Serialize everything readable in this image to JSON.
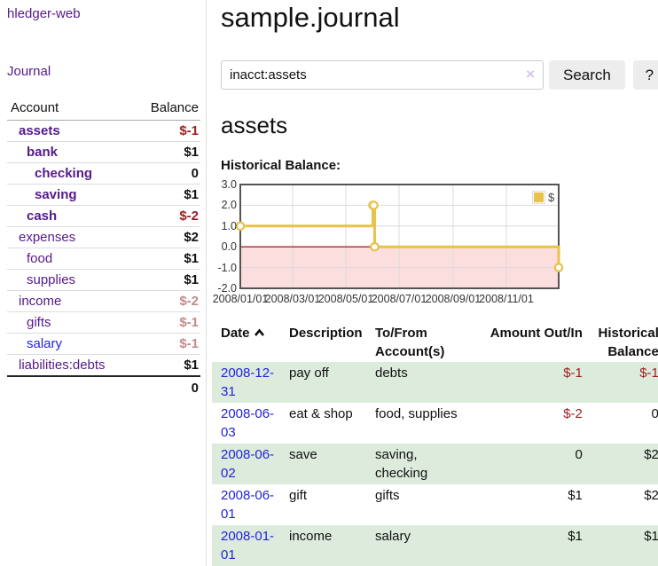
{
  "app": {
    "brand": "hledger-web"
  },
  "sidebar": {
    "journal_link": "Journal",
    "accounts": {
      "col_account": "Account",
      "col_balance": "Balance",
      "rows": [
        {
          "name": "assets",
          "balance": "$-1",
          "indent": 0,
          "bold": true,
          "balance_tone": "negative"
        },
        {
          "name": "bank",
          "balance": "$1",
          "indent": 1,
          "bold": true,
          "balance_tone": "normal"
        },
        {
          "name": "checking",
          "balance": "0",
          "indent": 2,
          "bold": true,
          "balance_tone": "normal"
        },
        {
          "name": "saving",
          "balance": "$1",
          "indent": 2,
          "bold": true,
          "balance_tone": "normal"
        },
        {
          "name": "cash",
          "balance": "$-2",
          "indent": 1,
          "bold": true,
          "balance_tone": "negative"
        },
        {
          "name": "expenses",
          "balance": "$2",
          "indent": 0,
          "bold": false,
          "balance_tone": "normal"
        },
        {
          "name": "food",
          "balance": "$1",
          "indent": 1,
          "bold": false,
          "balance_tone": "normal"
        },
        {
          "name": "supplies",
          "balance": "$1",
          "indent": 1,
          "bold": false,
          "balance_tone": "normal"
        },
        {
          "name": "income",
          "balance": "$-2",
          "indent": 0,
          "bold": false,
          "balance_tone": "negative-dim"
        },
        {
          "name": "gifts",
          "balance": "$-1",
          "indent": 1,
          "bold": false,
          "balance_tone": "negative-dim"
        },
        {
          "name": "salary",
          "balance": "$-1",
          "indent": 1,
          "bold": false,
          "balance_tone": "negative-dim",
          "link_state": "unvisited"
        },
        {
          "name": "liabilities:debts",
          "balance": "$1",
          "indent": 0,
          "bold": false,
          "balance_tone": "normal"
        }
      ],
      "total": "0"
    }
  },
  "main": {
    "title": "sample.journal",
    "search": {
      "value": "inacct:assets",
      "clear_icon": "×",
      "search_button": "Search",
      "help_button": "?"
    },
    "account_heading": "assets",
    "chart_heading": "Historical Balance:"
  },
  "chart_data": {
    "type": "line",
    "title": "Historical Balance of assets",
    "legend": [
      {
        "label": "$",
        "color": "#e8c24a"
      }
    ],
    "legend_position": "top-right",
    "x_range": [
      "2008-01-01",
      "2008-12-31"
    ],
    "ylim": [
      -2,
      3
    ],
    "yticks": [
      "3.0",
      "2.0",
      "1.0",
      "0.0",
      "-1.0",
      "-2.0"
    ],
    "xticks": [
      "2008/01/01",
      "2008/03/01",
      "2008/05/01",
      "2008/07/01",
      "2008/09/01",
      "2008/11/01"
    ],
    "grid": true,
    "series": [
      {
        "name": "$",
        "color": "#e8c24a",
        "step": true,
        "points": [
          [
            "2008-01-01",
            1
          ],
          [
            "2008-06-01",
            2
          ],
          [
            "2008-06-02",
            2
          ],
          [
            "2008-06-03",
            0
          ],
          [
            "2008-12-31",
            -1
          ]
        ]
      }
    ],
    "negative_fill": "#fcdede",
    "zero_line_color": "#8b0000"
  },
  "register": {
    "headers": {
      "date": "Date",
      "description": "Description",
      "accounts": "To/From Account(s)",
      "amount": "Amount Out/In",
      "balance": "Historical Balance"
    },
    "sort_icon": "chevron-up",
    "rows": [
      {
        "date": "2008-12-31",
        "description": "pay off",
        "accounts": "debts",
        "amount": "$-1",
        "balance": "$-1",
        "amount_tone": "negative",
        "balance_tone": "negative"
      },
      {
        "date": "2008-06-03",
        "description": "eat & shop",
        "accounts": "food, supplies",
        "amount": "$-2",
        "balance": "0",
        "amount_tone": "negative",
        "balance_tone": "normal"
      },
      {
        "date": "2008-06-02",
        "description": "save",
        "accounts": "saving, checking",
        "amount": "0",
        "balance": "$2",
        "amount_tone": "normal",
        "balance_tone": "normal"
      },
      {
        "date": "2008-06-01",
        "description": "gift",
        "accounts": "gifts",
        "amount": "$1",
        "balance": "$2",
        "amount_tone": "normal",
        "balance_tone": "normal"
      },
      {
        "date": "2008-01-01",
        "description": "income",
        "accounts": "salary",
        "amount": "$1",
        "balance": "$1",
        "amount_tone": "normal",
        "balance_tone": "normal"
      }
    ]
  },
  "colors": {
    "link_purple": "#551a8b",
    "link_blue": "#2222dd",
    "negative": "#9e1d1d",
    "negative_dim": "#c48a8a",
    "row_green": "#dcebdc",
    "series_gold": "#e8c24a",
    "negative_region_pink": "#fcdede",
    "zero_line_red": "#8b0000"
  }
}
